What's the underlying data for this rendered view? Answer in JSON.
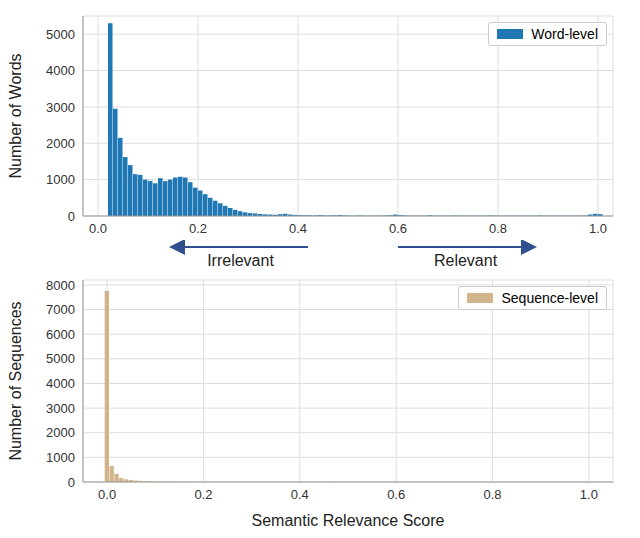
{
  "chart_data": [
    {
      "type": "histogram",
      "ylabel": "Number of Words",
      "legend": "upper right",
      "grid": true,
      "annotations": [
        {
          "text": "Irrelevant"
        },
        {
          "text": "Relevant"
        }
      ],
      "xlim": [
        -0.03,
        1.03
      ],
      "xticks": [
        {
          "value": 0,
          "label": "0.0"
        },
        {
          "value": 0.2,
          "label": "0.2"
        },
        {
          "value": 0.4,
          "label": "0.4"
        },
        {
          "value": 0.6,
          "label": "0.6"
        },
        {
          "value": 0.8,
          "label": "0.8"
        },
        {
          "value": 1,
          "label": "1.0"
        }
      ],
      "ylim": [
        0,
        5500
      ],
      "yticks": [
        0,
        1000,
        2000,
        3000,
        4000,
        5000
      ],
      "bins": [
        0.02,
        0.03,
        0.04,
        0.05,
        0.06,
        0.07,
        0.08,
        0.09,
        0.1,
        0.11,
        0.12,
        0.13,
        0.14,
        0.15,
        0.16,
        0.17,
        0.18,
        0.19,
        0.2,
        0.21,
        0.22,
        0.23,
        0.24,
        0.25,
        0.26,
        0.27,
        0.28,
        0.29,
        0.3,
        0.31,
        0.32,
        0.33,
        0.34,
        0.35,
        0.36,
        0.37,
        0.38,
        0.39,
        0.4,
        0.41,
        0.42,
        0.43,
        0.44,
        0.45,
        0.46,
        0.47,
        0.48,
        0.49,
        0.5,
        0.51,
        0.52,
        0.53,
        0.54,
        0.55,
        0.56,
        0.57,
        0.58,
        0.59,
        0.6,
        0.61,
        0.62,
        0.63,
        0.64,
        0.65,
        0.66,
        0.67,
        0.68,
        0.69,
        0.7,
        0.71,
        0.72,
        0.73,
        0.74,
        0.75,
        0.76,
        0.77,
        0.78,
        0.79,
        0.8,
        0.81,
        0.82,
        0.83,
        0.84,
        0.85,
        0.86,
        0.87,
        0.88,
        0.89,
        0.9,
        0.91,
        0.92,
        0.93,
        0.94,
        0.95,
        0.96,
        0.97,
        0.98,
        0.99,
        1.0,
        1.01
      ],
      "series": [
        {
          "name": "Word-level",
          "color": "#1f77b4",
          "values": [
            5300,
            2950,
            2150,
            1620,
            1400,
            1150,
            1130,
            1000,
            960,
            900,
            1040,
            960,
            1000,
            1060,
            1080,
            1060,
            930,
            780,
            700,
            600,
            500,
            420,
            350,
            280,
            220,
            170,
            130,
            100,
            80,
            70,
            55,
            45,
            40,
            35,
            50,
            60,
            40,
            30,
            25,
            20,
            20,
            15,
            25,
            15,
            15,
            20,
            25,
            15,
            10,
            10,
            15,
            10,
            10,
            10,
            10,
            15,
            20,
            40,
            25,
            15,
            10,
            10,
            10,
            10,
            20,
            10,
            10,
            10,
            10,
            15,
            10,
            10,
            10,
            10,
            10,
            10,
            15,
            10,
            10,
            10,
            10,
            10,
            10,
            10,
            10,
            10,
            15,
            10,
            10,
            10,
            10,
            10,
            10,
            10,
            10,
            15,
            40,
            60,
            50
          ]
        }
      ]
    },
    {
      "type": "histogram",
      "xlabel": "Semantic Relevance Score",
      "ylabel": "Number of Sequences",
      "legend": "upper right",
      "grid": true,
      "xlim": [
        -0.05,
        1.05
      ],
      "xticks": [
        {
          "value": 0,
          "label": "0.0"
        },
        {
          "value": 0.2,
          "label": "0.2"
        },
        {
          "value": 0.4,
          "label": "0.4"
        },
        {
          "value": 0.6,
          "label": "0.6"
        },
        {
          "value": 0.8,
          "label": "0.8"
        },
        {
          "value": 1,
          "label": "1.0"
        }
      ],
      "ylim": [
        0,
        8200
      ],
      "yticks": [
        0,
        1000,
        2000,
        3000,
        4000,
        5000,
        6000,
        7000,
        8000
      ],
      "bins": [
        -0.005,
        0.005,
        0.015,
        0.025,
        0.035,
        0.045,
        0.055,
        0.065,
        0.075,
        0.085,
        0.095,
        0.105,
        0.115,
        0.125,
        0.135,
        0.145,
        0.155,
        0.165,
        0.175,
        0.185,
        0.195,
        0.205,
        0.215,
        0.225,
        0.235,
        0.245,
        0.255,
        0.265,
        0.275,
        0.285,
        0.295,
        0.305,
        0.315,
        0.325,
        0.335,
        0.345,
        0.355,
        0.365,
        0.375,
        0.385,
        0.395,
        0.405,
        0.415,
        0.425,
        0.435,
        0.445,
        0.455,
        0.465,
        0.475,
        0.485,
        0.495,
        0.505,
        0.515,
        0.525,
        0.535,
        0.545,
        0.555,
        0.565,
        0.575,
        0.585,
        0.595,
        0.605,
        0.615,
        0.625,
        0.635,
        0.645,
        0.655,
        0.665,
        0.675,
        0.685,
        0.695,
        0.705,
        0.715,
        0.725,
        0.735,
        0.745,
        0.755,
        0.765,
        0.775,
        0.785,
        0.795,
        0.805,
        0.815,
        0.825,
        0.835,
        0.845,
        0.855,
        0.865,
        0.875,
        0.885,
        0.895,
        0.905,
        0.915,
        0.925,
        0.935,
        0.945,
        0.955,
        0.965,
        0.975,
        0.985,
        0.995,
        1.005
      ],
      "series": [
        {
          "name": "Sequence-level",
          "color": "#d2b48c",
          "values": [
            7750,
            650,
            330,
            160,
            110,
            80,
            60,
            45,
            35,
            30,
            25,
            20,
            15,
            12,
            10,
            8,
            15,
            10,
            8,
            5,
            5,
            5,
            4,
            4,
            3,
            3,
            3,
            3,
            3,
            3,
            3,
            3,
            3,
            3,
            3,
            3,
            3,
            3,
            3,
            3,
            3,
            3,
            3,
            3,
            3,
            3,
            8,
            12,
            5,
            2,
            2,
            2,
            2,
            2,
            2,
            2,
            2,
            2,
            2,
            2,
            2,
            2,
            2,
            2,
            2,
            2,
            2,
            2,
            2,
            2,
            2,
            2,
            2,
            2,
            2,
            2,
            2,
            2,
            2,
            2,
            2,
            2,
            2,
            2,
            2,
            2,
            2,
            2,
            2,
            2,
            2,
            2,
            2,
            2,
            2,
            2,
            2,
            2,
            2,
            2
          ]
        }
      ]
    }
  ]
}
